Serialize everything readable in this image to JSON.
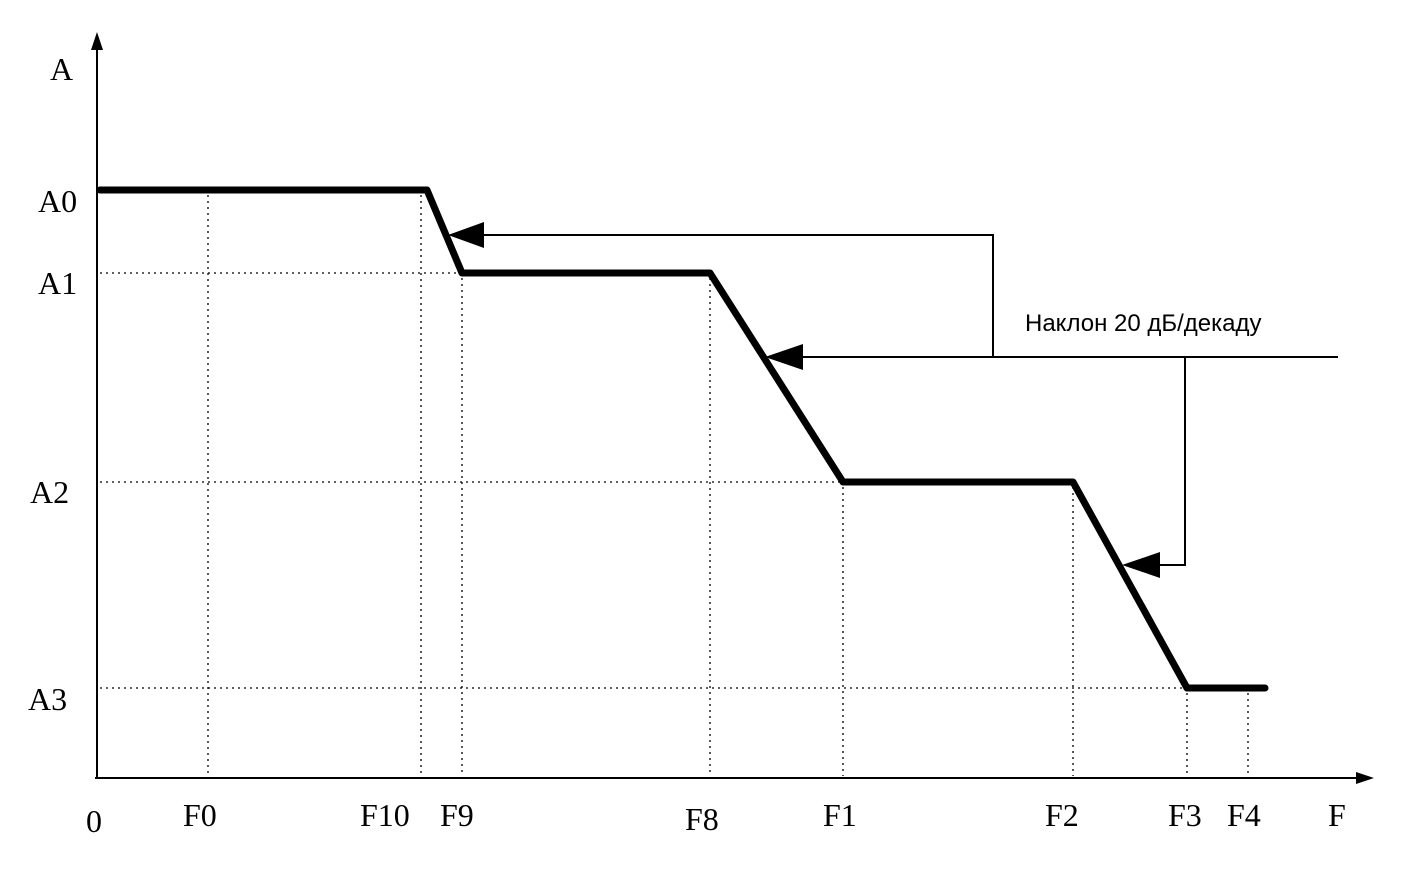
{
  "axes": {
    "y_label": "A",
    "x_label": "F",
    "origin": "0"
  },
  "y_levels": [
    "A0",
    "A1",
    "A2",
    "A3"
  ],
  "x_marks": [
    "F0",
    "F10",
    "F9",
    "F8",
    "F1",
    "F2",
    "F3",
    "F4"
  ],
  "annotation": "Наклон 20 дБ/декаду"
}
